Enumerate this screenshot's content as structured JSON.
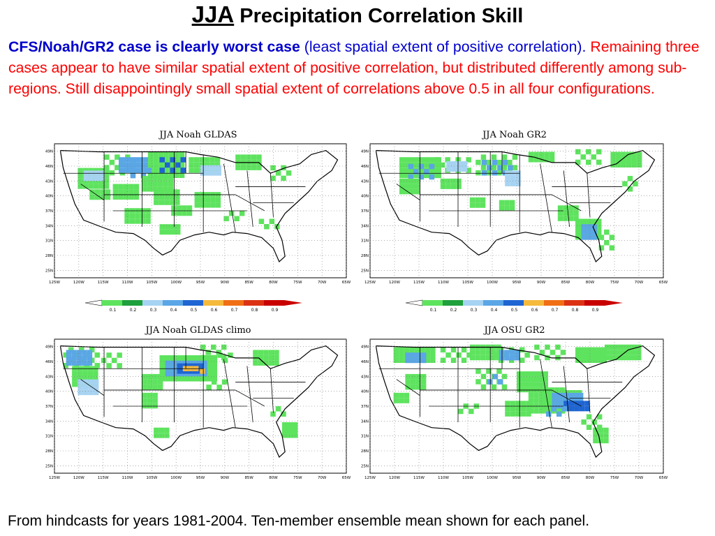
{
  "title": {
    "season": "JJA",
    "rest": "Precipitation Correlation Skill"
  },
  "summary": {
    "bold": "CFS/Noah/GR2 case is clearly worst case",
    "paren": "(least spatial extent of positive correlation).",
    "body": "Remaining three cases appear to have similar spatial extent of positive correlation, but distributed differently among sub-regions. Still disappointingly small spatial extent of correlations above 0.5 in all four configurations."
  },
  "panels": [
    {
      "title": "JJA Noah GLDAS"
    },
    {
      "title": "JJA Noah GR2"
    },
    {
      "title": "JJA Noah GLDAS climo"
    },
    {
      "title": "JJA OSU GR2"
    }
  ],
  "colorbar": {
    "levels": [
      "0.1",
      "0.2",
      "0.3",
      "0.4",
      "0.5",
      "0.6",
      "0.7",
      "0.8",
      "0.9"
    ],
    "colors": [
      "#5ee35e",
      "#1ea03c",
      "#a7d3f2",
      "#5aa6e6",
      "#1e64d2",
      "#f5b93c",
      "#f06e14",
      "#dc3214",
      "#c80000"
    ]
  },
  "maps": {
    "lat_labels": [
      "49N",
      "46N",
      "43N",
      "40N",
      "37N",
      "34N",
      "31N",
      "28N",
      "25N"
    ],
    "lon_labels": [
      "125W",
      "120W",
      "115W",
      "110W",
      "105W",
      "100W",
      "95W",
      "90W",
      "85W",
      "80W",
      "75W",
      "70W",
      "65W"
    ]
  },
  "footer": "From hindcasts for years 1981-2004. Ten-member ensemble mean shown for each panel."
}
